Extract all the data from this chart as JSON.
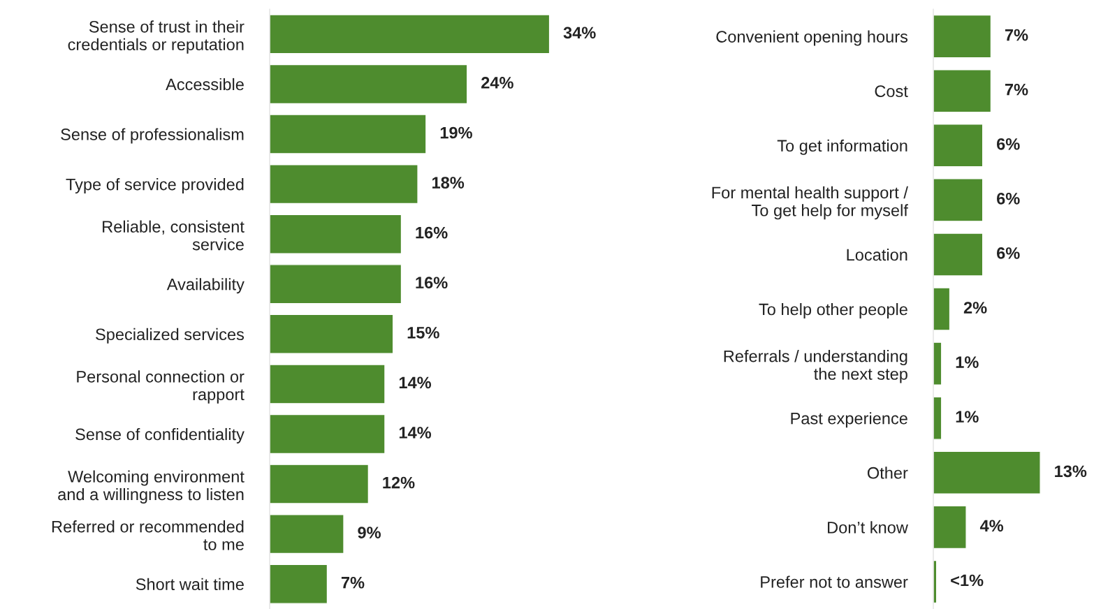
{
  "chart_data": [
    {
      "type": "bar",
      "orientation": "horizontal",
      "tick_labels": "y",
      "categories": [
        "Sense of trust in their\ncredentials or reputation",
        "Accessible",
        "Sense of professionalism",
        "Type of service provided",
        "Reliable, consistent\nservice",
        "Availability",
        "Specialized services",
        "Personal connection or\nrapport",
        "Sense of confidentiality",
        "Welcoming environment\nand a willingness to listen",
        "Referred or recommended\nto me",
        "Short wait time"
      ],
      "series": [
        {
          "color": "#4e8c2e",
          "values": [
            34,
            24,
            19,
            18,
            16,
            16,
            15,
            14,
            14,
            12,
            9,
            7
          ],
          "value_labels": [
            "34%",
            "24%",
            "19%",
            "18%",
            "16%",
            "16%",
            "15%",
            "14%",
            "14%",
            "12%",
            "9%",
            "7%"
          ]
        }
      ]
    },
    {
      "type": "bar",
      "orientation": "horizontal",
      "tick_labels": "y",
      "categories": [
        "Convenient opening hours",
        "Cost",
        "To get information",
        "For mental health support /\nTo get help for myself",
        "Location",
        "To help other people",
        "Referrals / understanding\nthe next step",
        "Past experience",
        "Other",
        "Don’t know",
        "Prefer not to answer"
      ],
      "series": [
        {
          "color": "#4e8c2e",
          "values": [
            7,
            7,
            6,
            6,
            6,
            2,
            1,
            1,
            13,
            4,
            0.4
          ],
          "value_labels": [
            "7%",
            "7%",
            "6%",
            "6%",
            "6%",
            "2%",
            "1%",
            "1%",
            "13%",
            "4%",
            "<1%"
          ]
        }
      ]
    }
  ]
}
